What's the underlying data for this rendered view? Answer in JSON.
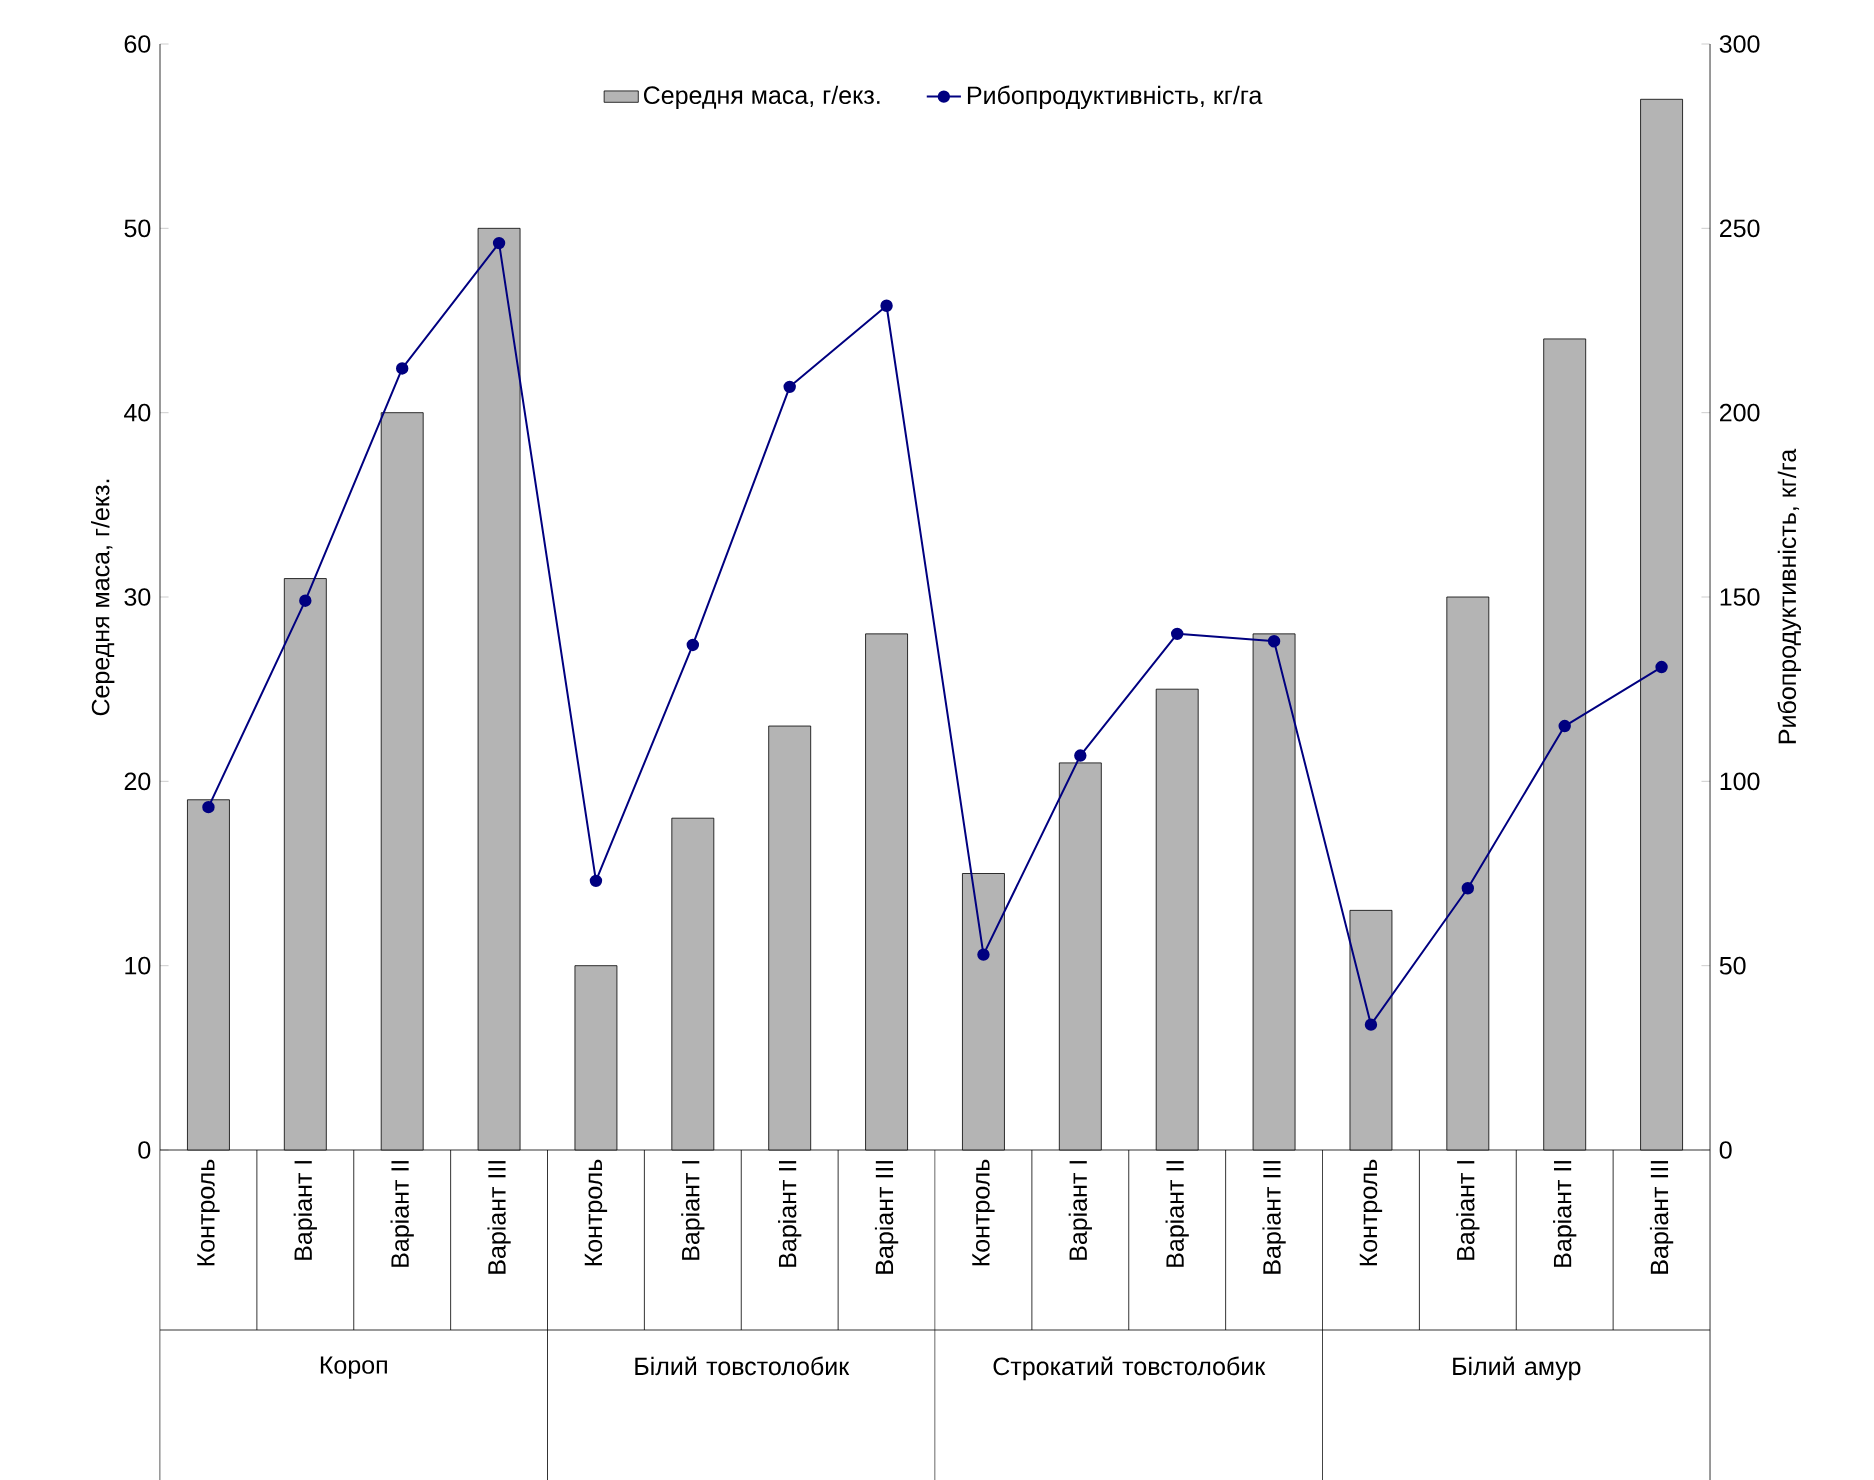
{
  "chart_data": {
    "type": "bar",
    "categories": [
      "Контроль",
      "Варіант I",
      "Варіант II",
      "Варіант III",
      "Контроль",
      "Варіант I",
      "Варіант II",
      "Варіант III",
      "Контроль",
      "Варіант I",
      "Варіант II",
      "Варіант III",
      "Контроль",
      "Варіант I",
      "Варіант II",
      "Варіант III"
    ],
    "series": [
      {
        "name": "Середня маса, г/екз.",
        "color": "#b4b4b4",
        "values": [
          19,
          31,
          40,
          50,
          10,
          18,
          23,
          28,
          15,
          21,
          25,
          28,
          13,
          30,
          44,
          57
        ]
      },
      {
        "name": "Рибопродуктивність, кг/га",
        "type": "line",
        "axis": "y2",
        "color": "#000080",
        "values": [
          93,
          149,
          212,
          246,
          73,
          137,
          207,
          229,
          53,
          107,
          140,
          138,
          34,
          71,
          115,
          131
        ]
      }
    ],
    "ylabel": "Середня маса, г/екз.",
    "y2label": "Рибопродуктивність, кг/га",
    "ylim": [
      0,
      60
    ],
    "yticks": [
      0,
      10,
      20,
      30,
      40,
      50,
      60
    ],
    "y2lim": [
      0,
      300
    ],
    "y2ticks": [
      0,
      50,
      100,
      150,
      200,
      250,
      300
    ],
    "annotations": [
      "Короп",
      "Білий товстолобик",
      "Строкатий товстолобик",
      "Білий амур"
    ],
    "legend": "top",
    "marker": "circle"
  }
}
